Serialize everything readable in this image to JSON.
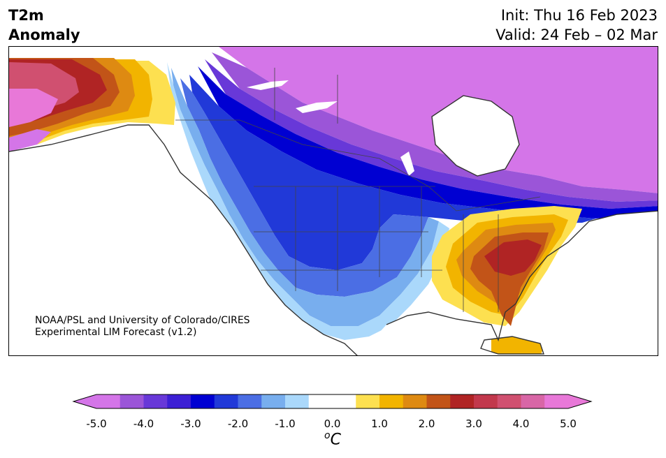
{
  "title": {
    "left_line1": "T2m",
    "left_line2": "Anomaly",
    "init": "Init: Thu 16 Feb 2023",
    "valid": "Valid: 24 Feb – 02 Mar"
  },
  "credit": {
    "line1": "NOAA/PSL and University of Colorado/CIRES",
    "line2": "Experimental LIM Forecast (v1.2)"
  },
  "colorbar": {
    "unit_base": "C",
    "unit_sup": "o",
    "ticks": [
      "-5.0",
      "-4.0",
      "-3.0",
      "-2.0",
      "-1.0",
      "0.0",
      "1.0",
      "2.0",
      "3.0",
      "4.0",
      "5.0"
    ],
    "colors": [
      "#d475e8",
      "#9b55d8",
      "#6838d8",
      "#3c1fd4",
      "#0000d2",
      "#2139d8",
      "#4b6ee4",
      "#78aeee",
      "#aad8fb",
      "#ffffff",
      "#ffffff",
      "#fde050",
      "#f2b400",
      "#de8a12",
      "#c25418",
      "#b02424",
      "#c2384c",
      "#d05070",
      "#d866a6",
      "#e878d8"
    ],
    "under_color": "#d475e8",
    "over_color": "#e878d8"
  },
  "map_colors": {
    "purple": "#d475e8",
    "violet": "#9b55d8",
    "indigo": "#6838d8",
    "deep_blue": "#0000d2",
    "blue": "#2139d8",
    "mid_blue": "#4b6ee4",
    "light_blue": "#78aeee",
    "pale_blue": "#aad8fb",
    "yellow": "#fde050",
    "gold": "#f2b400",
    "orange": "#de8a12",
    "rust": "#c25418",
    "red": "#b02424",
    "pink": "#d05070",
    "magenta": "#e878d8",
    "coast": "#333333"
  }
}
